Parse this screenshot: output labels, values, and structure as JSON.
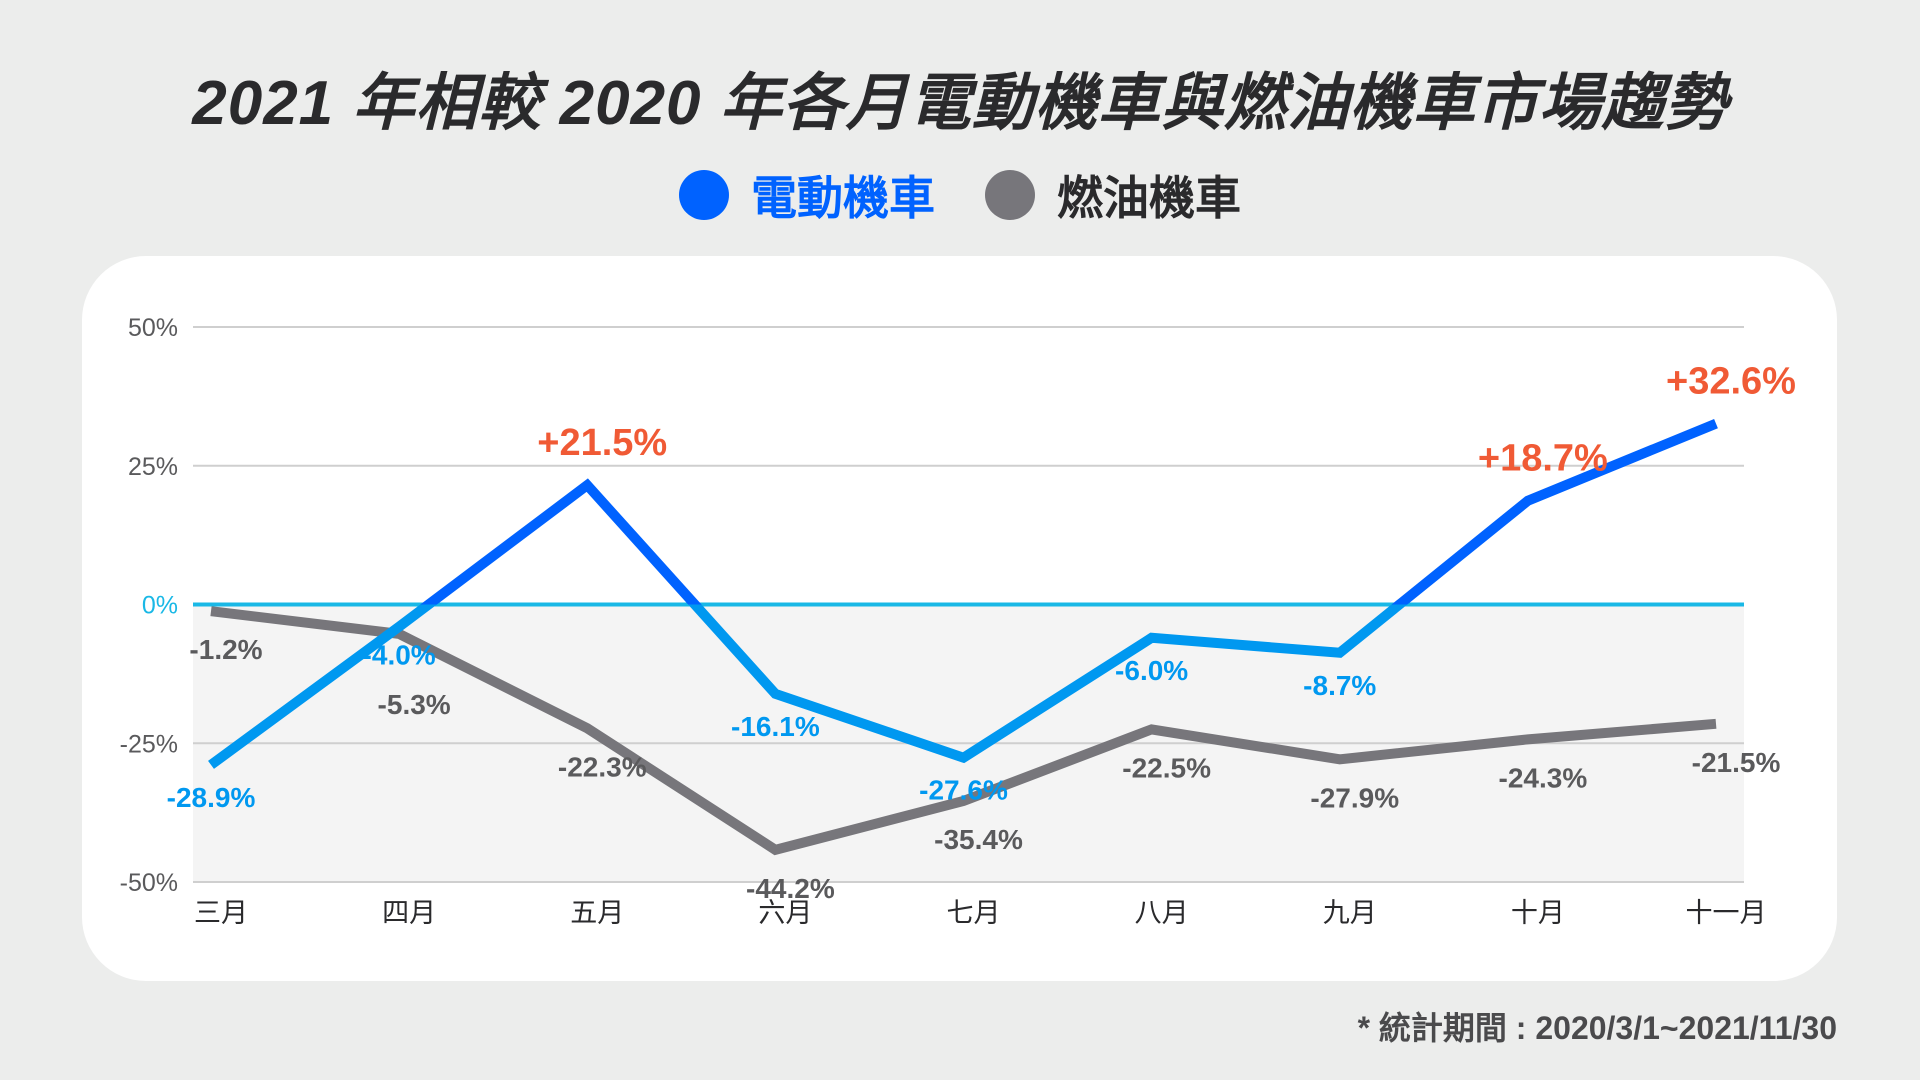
{
  "chart_data": {
    "type": "line",
    "title": "2021 年相較 2020 年各月電動機車與燃油機車市場趨勢",
    "categories": [
      "三月",
      "四月",
      "五月",
      "六月",
      "七月",
      "八月",
      "九月",
      "十月",
      "十一月"
    ],
    "series": [
      {
        "name": "電動機車",
        "values": [
          -28.9,
          -4.0,
          21.5,
          -16.1,
          -27.6,
          -6.0,
          -8.7,
          18.7,
          32.6
        ],
        "color_positive": "#0062ff",
        "color_negative": "#0098f0"
      },
      {
        "name": "燃油機車",
        "values": [
          -1.2,
          -5.3,
          -22.3,
          -44.2,
          -35.4,
          -22.5,
          -27.9,
          -24.3,
          -21.5
        ],
        "color": "#77767b"
      }
    ],
    "data_labels": {
      "電動機車": [
        "-28.9%",
        "-4.0%",
        "+21.5%",
        "-16.1%",
        "-27.6%",
        "-6.0%",
        "-8.7%",
        "+18.7%",
        "+32.6%"
      ],
      "燃油機車": [
        "-1.2%",
        "-5.3%",
        "-22.3%",
        "-44.2%",
        "-35.4%",
        "-22.5%",
        "-27.9%",
        "-24.3%",
        "-21.5%"
      ]
    },
    "highlight_color": "#f05a35",
    "yticks": [
      "50%",
      "25%",
      "0%",
      "-25%",
      "-50%"
    ],
    "ytick_values": [
      50,
      25,
      0,
      -25,
      -50
    ],
    "ylim": [
      -50,
      50
    ],
    "grid": true,
    "zero_line_color": "#19b8e6",
    "legend_position": "top-center",
    "footnote": "* 統計期間 : 2020/3/1~2021/11/30"
  }
}
